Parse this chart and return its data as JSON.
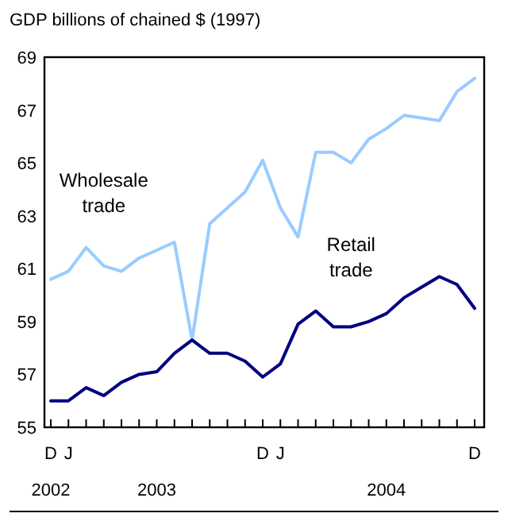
{
  "chart_data": {
    "type": "line",
    "ylabel": "GDP  billions of chained $ (1997)",
    "categories": [
      "D",
      "J",
      null,
      null,
      null,
      null,
      null,
      null,
      null,
      null,
      null,
      null,
      "D",
      "J",
      null,
      null,
      null,
      null,
      null,
      null,
      null,
      null,
      null,
      null,
      "D"
    ],
    "series": [
      {
        "name": "Wholesale trade",
        "color": "#99ccff",
        "values": [
          60.6,
          60.9,
          61.8,
          61.1,
          60.9,
          61.4,
          61.7,
          62.0,
          58.3,
          62.7,
          63.3,
          63.9,
          65.1,
          63.3,
          62.2,
          65.4,
          65.4,
          65.0,
          65.9,
          66.3,
          66.8,
          66.7,
          66.6,
          67.7,
          68.2
        ]
      },
      {
        "name": "Retail trade",
        "color": "#000080",
        "values": [
          56.0,
          56.0,
          56.5,
          56.2,
          56.7,
          57.0,
          57.1,
          57.8,
          58.3,
          57.8,
          57.8,
          57.5,
          56.9,
          57.4,
          58.9,
          59.4,
          58.8,
          58.8,
          59.0,
          59.3,
          59.9,
          60.3,
          60.7,
          60.4,
          59.5
        ]
      }
    ],
    "ylim": [
      55,
      69
    ],
    "yticks": [
      55,
      57,
      59,
      61,
      63,
      65,
      67,
      69
    ],
    "annotations": [
      "2002",
      "2003",
      "2004"
    ],
    "grid": false,
    "marker": "none",
    "line_style": "solid"
  }
}
